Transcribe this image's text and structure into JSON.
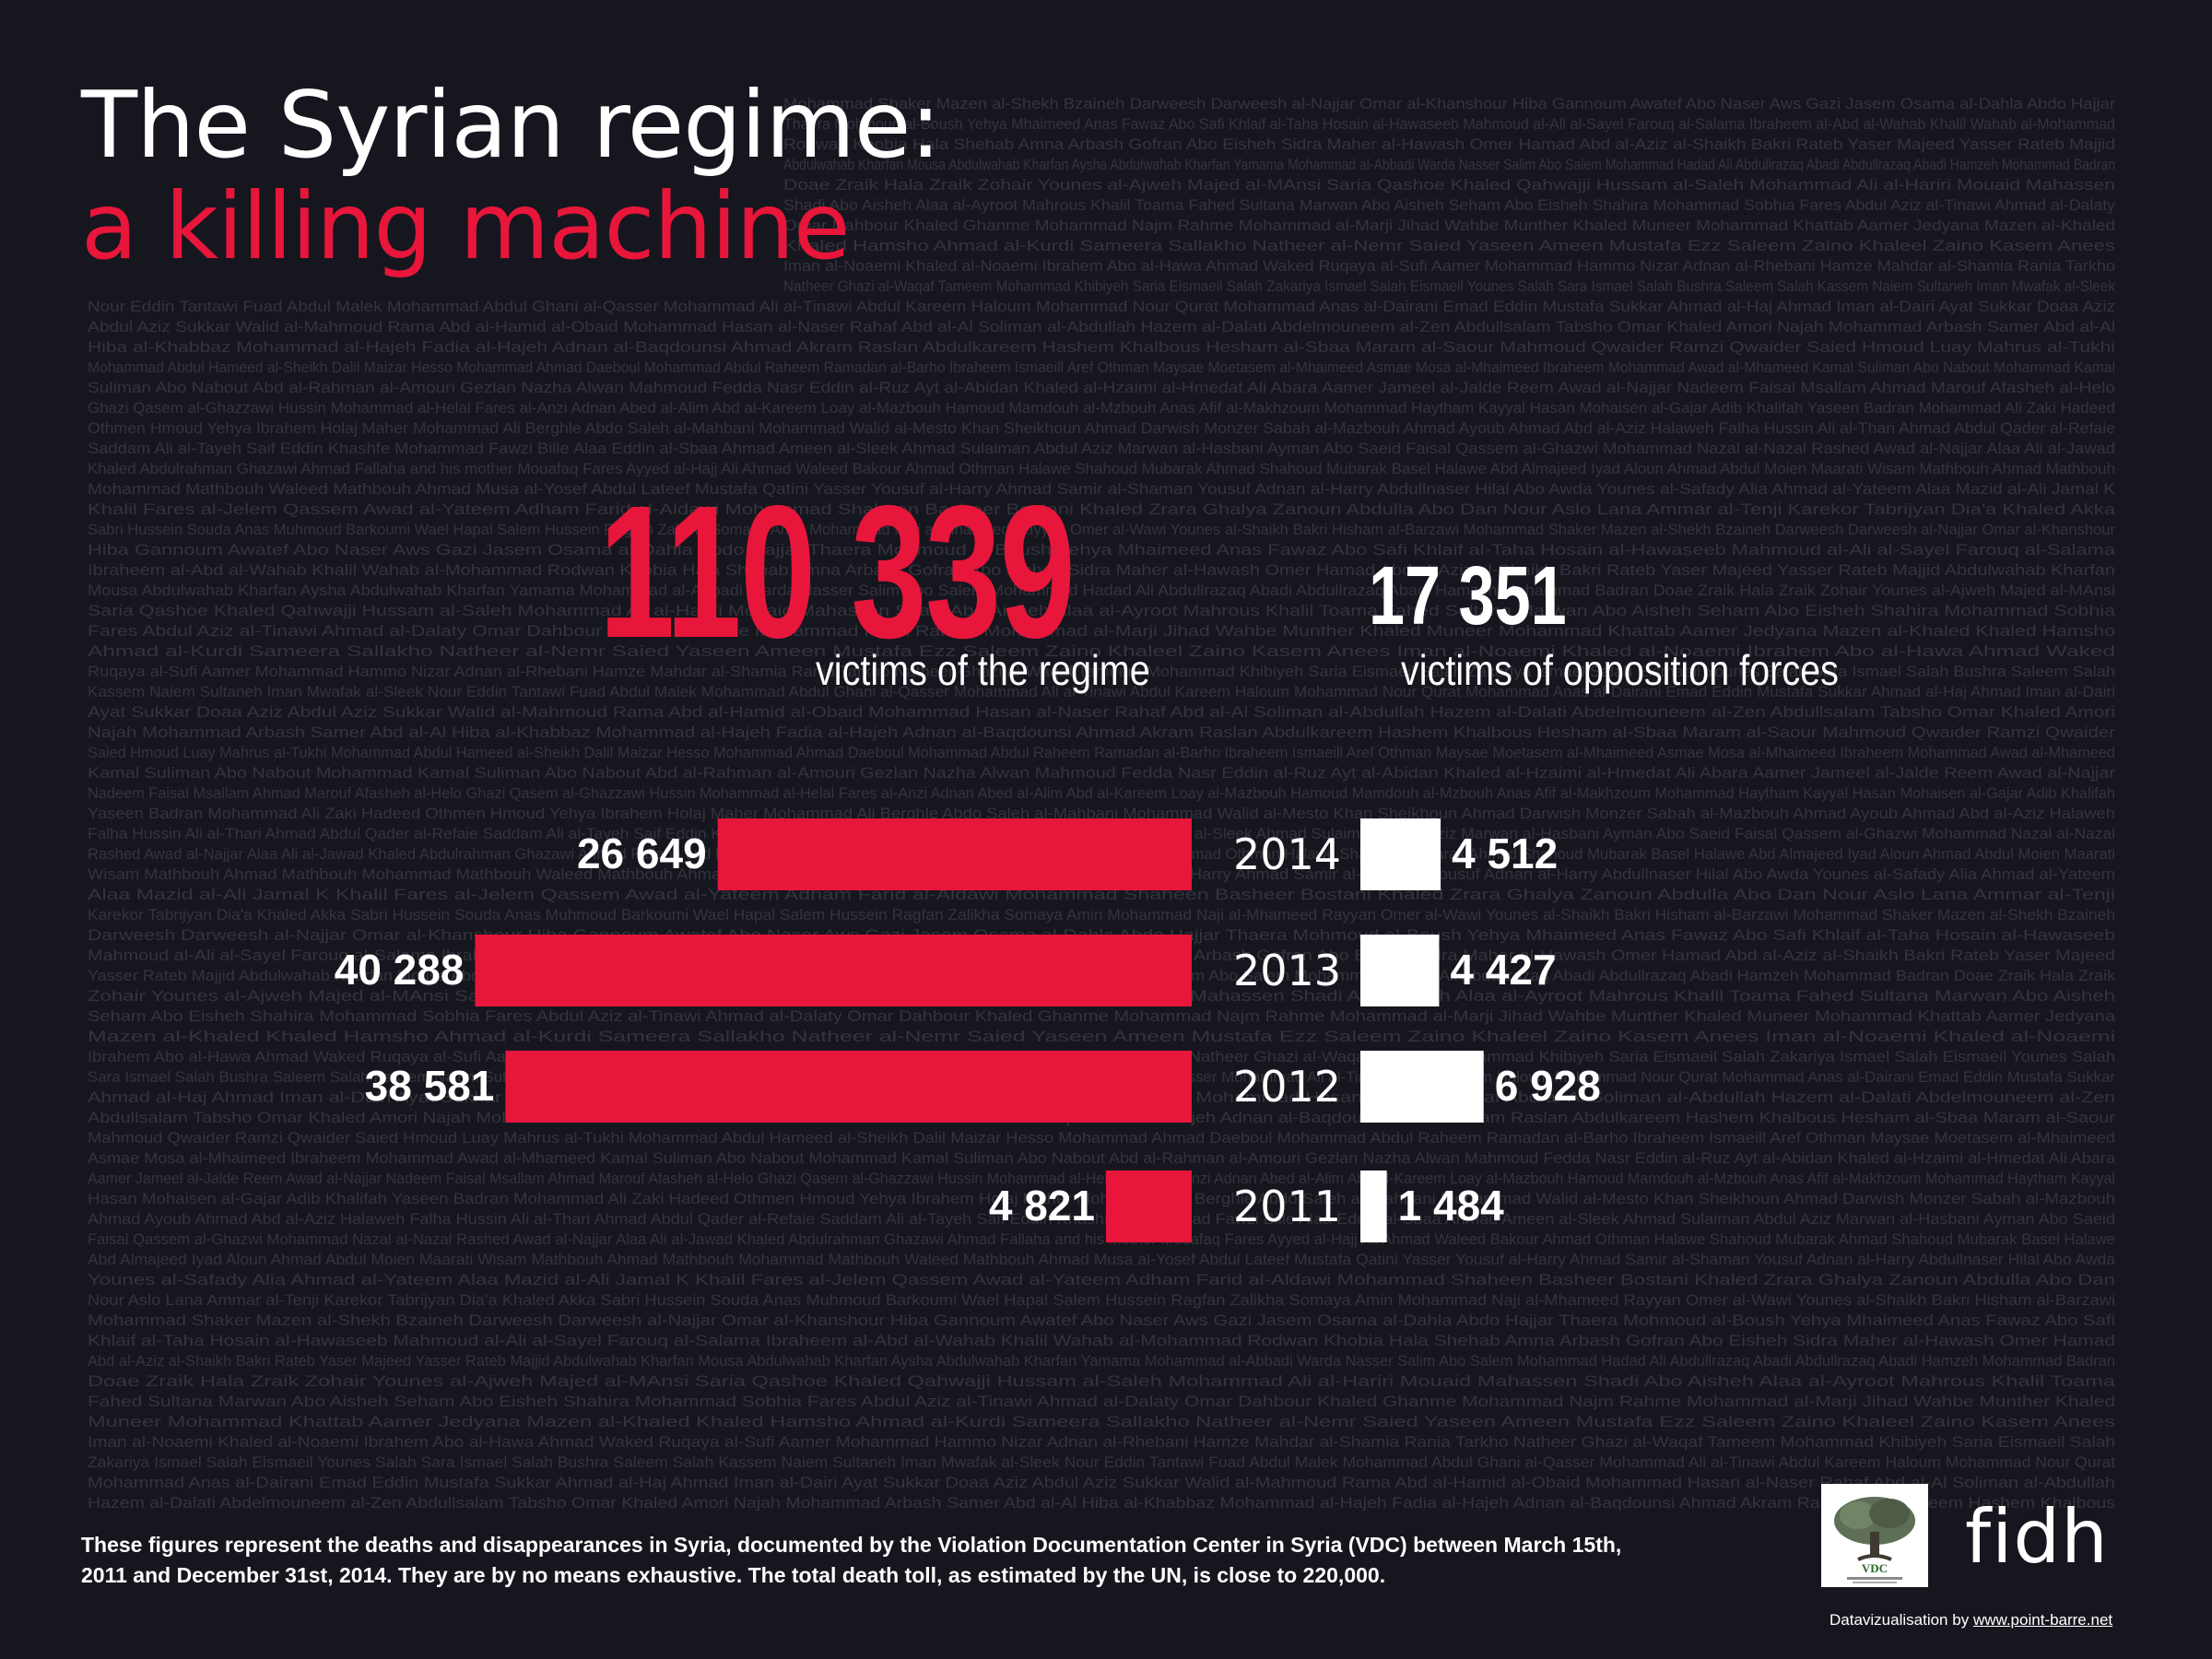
{
  "title_line1": "The Syrian regime:",
  "title_line2": "a killing machine",
  "regime_total": "110 339",
  "regime_label": "victims of the regime",
  "opposition_total": "17 351",
  "opposition_label": "victims of opposition forces",
  "footnote": "These figures represent the deaths and disappearances in Syria, documented by the Violation Documentation Center in Syria (VDC) between March 15th, 2011 and December 31st, 2014. They are by no means exhaustive. The total death toll, as estimated by the UN, is close to 220,000.",
  "credit_prefix": "Datavizualisation by",
  "credit_link": "www.point-barre.net",
  "fidh_logo": "fidh",
  "vdc_logo": "VDC",
  "colors": {
    "regime": "#e8163a",
    "opposition": "#ffffff",
    "background": "#16161f"
  },
  "chart_data": {
    "type": "bar",
    "categories": [
      "2014",
      "2013",
      "2012",
      "2011"
    ],
    "series": [
      {
        "name": "victims of the regime",
        "values": [
          26649,
          40288,
          38581,
          4821
        ],
        "labels": [
          "26 649",
          "40 288",
          "38 581",
          "4 821"
        ]
      },
      {
        "name": "victims of opposition forces",
        "values": [
          4512,
          4427,
          6928,
          1484
        ],
        "labels": [
          "4 512",
          "4 427",
          "6 928",
          "1 484"
        ]
      }
    ]
  },
  "background_names": [
    "Mohammad Shaker",
    "Mazen al-Shekh Bzaineh",
    "Darweesh Darweesh al-Najjar",
    "Omar al-Khanshour",
    "Hiba Gannoum",
    "Awatef Abo Naser",
    "Aws Gazi Jasem",
    "Osama al-Dahla",
    "Abdo Hajjar",
    "Thaera Mohmoud al-Boush",
    "Yehya Mhaimeed",
    "Anas Fawaz Abo Safi",
    "Khlaif al-Taha",
    "Hosain al-Hawaseeb",
    "Mahmoud al-Ali al-Sayel",
    "Farouq al-Salama",
    "Ibraheem al-Abd al-Wahab",
    "Khalil Wahab al-Mohammad",
    "Rodwan Khobia",
    "Hala Shehab",
    "Amna Arbash",
    "Gofran Abo Eisheh",
    "Sidra Maher al-Hawash",
    "Omer Hamad",
    "Abd al-Aziz al-Shaikh Bakri",
    "Rateb Yaser Majeed",
    "Yasser Rateb Majjid",
    "Abdulwahab Kharfan",
    "Mousa Abdulwahab Kharfan",
    "Aysha Abdulwahab Kharfan",
    "Yamama Mohammad al-Abbadi",
    "Warda Nasser Salim Abo Salem",
    "Mohammad Hadad",
    "Ali Abdullrazaq Abadi",
    "Abdullrazaq Abadi",
    "Hamzeh Mohammad Badran",
    "Doae Zraik",
    "Hala Zraik",
    "Zohair Younes al-Ajweh",
    "Majed al-MAnsi",
    "Saria Qashoe",
    "Khaled Qahwajji",
    "Hussam al-Saleh",
    "Mohammad Ali al-Hariri",
    "Mouaid Mahassen",
    "Shadi Abo Aisheh",
    "Alaa al-Ayroot",
    "Mahrous Khalil Toama",
    "Fahed Sultana",
    "Marwan Abo Aisheh",
    "Seham Abo Eisheh",
    "Shahira Mohammad Sobhia",
    "Fares Abdul Aziz al-Tinawi",
    "Ahmad al-Dalaty",
    "Omar Dahbour",
    "Khaled Ghanme",
    "Mohammad Najm Rahme",
    "Mohammad al-Marji",
    "Jihad Wahbe",
    "Munther Khaled",
    "Muneer Mohammad Khattab",
    "Aamer Jedyana",
    "Mazen al-Khaled",
    "Khaled Hamsho",
    "Ahmad al-Kurdi",
    "Sameera Sallakho",
    "Natheer al-Nemr",
    "Saied Yaseen",
    "Ameen Mustafa Ezz",
    "Saleem Zaino",
    "Khaleel Zaino",
    "Kasem Anees",
    "Iman al-Noaemi",
    "Khaled al-Noaemi",
    "Ibrahem Abo al-Hawa",
    "Ahmad Waked",
    "Ruqaya al-Sufi",
    "Aamer Mohammad Hammo",
    "Nizar Adnan al-Rhebani",
    "Hamze Mahdar al-Shamia",
    "Rania Tarkho",
    "Natheer Ghazi al-Waqaf",
    "Tameem Mohammad Khibiyeh",
    "Saria Eismaeil Salah",
    "Zakariya Ismael Salah",
    "Eismaeil Younes Salah",
    "Sara Ismael Salah",
    "Bushra Saleem Salah",
    "Kassem Naiem Sultaneh",
    "Iman Mwafak al-Sleek",
    "Nour Eddin Tantawi",
    "Fuad Abdul Malek",
    "Mohammad Abdul Ghani al-Qasser",
    "Mohammad Ali al-Tinawi",
    "Abdul Kareem Haloum",
    "Mohammad Nour Qurat",
    "Mohammad Anas al-Dairani",
    "Emad Eddin Mustafa Sukkar",
    "Ahmad al-Haj Ahmad",
    "Iman al-Dairi",
    "Ayat Sukkar",
    "Doaa Aziz",
    "Abdul Aziz Sukkar",
    "Walid al-Mahmoud",
    "Rama Abd al-Hamid al-Obaid",
    "Mohammad Hasan al-Naser",
    "Rahaf Abd al-Al",
    "Soliman al-Abdullah",
    "Hazem al-Dalati",
    "Abdelmouneem al-Zen",
    "Abdullsalam Tabsho",
    "Omar Khaled Amori",
    "Najah Mohammad Arbash",
    "Samer Abd al-Al",
    "Hiba al-Khabbaz",
    "Mohammad al-Hajeh",
    "Fadia al-Hajeh",
    "Adnan al-Baqdounsi",
    "Ahmad Akram Raslan",
    "Abdulkareem Hashem Khalbous",
    "Hesham al-Sbaa",
    "Maram al-Saour",
    "Mahmoud Qwaider",
    "Ramzi Qwaider",
    "Saied Hmoud",
    "Luay Mahrus al-Tukhi",
    "Mohammad Abdul Hameed al-Sheikh",
    "Dalil Maizar Hesso",
    "Mohammad Ahmad Daeboul",
    "Mohammad Abdul Raheem",
    "Ramadan al-Barho",
    "Ibraheem",
    "Ismaeill Aref Othman",
    "Maysae Moetasem al-Mhaimeed",
    "Asmae Mosa al-Mhaimeed",
    "Ibraheem Mohammad Awad al-Mhameed",
    "Kamal Suliman Abo Nabout",
    "Mohammad Kamal",
    "Suliman Abo Nabout",
    "Abd al-Rahman al-Amouri Gezlan",
    "Nazha Alwan",
    "Mahmoud Fedda",
    "Nasr Eddin al-Ruz",
    "Ayt al-Abidan",
    "Khaled al-Hzaimi al-Hmedat",
    "Ali Abara",
    "Aamer Jameel al-Jalde",
    "Reem Awad al-Najjar",
    "Nadeem Faisal Msallam",
    "Ahmad Marouf Afasheh al-Helo",
    "Ghazi Qasem al-Ghazzawi",
    "Hussin Mohammad al-Helal",
    "Fares al-Anzi",
    "Adnan Abed al-Alim",
    "Abd al-Kareem Loay al-Mazbouh",
    "Hamoud Mamdouh al-Mzbouh",
    "Anas Afif al-Makhzoum",
    "Mohammad Haytham Kayyal",
    "Hasan Mohaisen al-Gajar",
    "Adib Khalifah",
    "Yaseen Badran",
    "Mohammad Ali Zaki Hadeed",
    "Othmen Hmoud",
    "Yehya Ibrahem Holaj",
    "Maher Mohammad Ali Berghle",
    "Abdo Saleh al-Mahbani",
    "Mohammad Walid al-Mesto",
    "Khan Sheikhoun",
    "Ahmad Darwish",
    "Monzer Sabah al-Mazbouh",
    "Ahmad Ayoub",
    "Ahmad Abd al-Aziz Halaweh",
    "Falha Hussin Ali al-Thari",
    "Ahmad Abdul Qader al-Refaie",
    "Saddam Ali al-Tayeh",
    "Saif Eddin Khashfe",
    "Mohammad Fawzi Bille",
    "Alaa Eddin al-Sbaa",
    "Ahmad Ameen al-Sleek",
    "Ahmad Sulaiman Abdul Aziz",
    "Marwan al-Hasbani",
    "Ayman Abo Saeid",
    "Faisal Qassem al-Ghazwi",
    "Mohammad Nazal al-Nazal",
    "Rashed Awad al-Najjar",
    "Alaa Ali al-Jawad",
    "Khaled Abdulrahman Ghazawi",
    "Ahmad Fallaha and his mother",
    "Mouafaq Fares Ayyed al-Hajj Ali",
    "Ahmad Waleed Bakour",
    "Ahmad Othman Halawe",
    "Shahoud Mubarak",
    "Ahmad Shahoud Mubarak",
    "Basel Halawe",
    "Abd Almajeed Iyad Aloun",
    "Ahmad Abdul Moien Maarati",
    "Wisam Mathbouh",
    "Ahmad Mathbouh",
    "Mohammad Mathbouh",
    "Waleed Mathbouh",
    "Ahmad Musa al-Yosef",
    "Abdul Lateef Mustafa Qatini",
    "Yasser Yousuf al-Harry",
    "Ahmad Samir al-Shaman",
    "Yousuf Adnan al-Harry",
    "Abdullnaser Hilal Abo Awda",
    "Younes al-Safady",
    "Alia Ahmad al-Yateem",
    "Alaa Mazid al-Ali",
    "Jamal K",
    "Khalil Fares al-Jelem",
    "Qassem Awad al-Yateem",
    "Adham Farid al-Aldawi",
    "Mohammad Shaheen",
    "Basheer Bostani",
    "Khaled Zrara",
    "Ghalya Zanoun",
    "Abdulla Abo Dan",
    "Nour Aslo",
    "Lana Ammar al-Tenji",
    "Karekor Tabrijyan",
    "Dia'a Khaled Akka",
    "Sabri Hussein Souda",
    "Anas Muhmoud Barkoumi",
    "Wael Hapal",
    "Salem Hussein Ragfan Zalikha Somaya Amin",
    "Mohammad Naji al-Mhameed",
    "Rayyan Omer al-Wawi",
    "Younes al-Shaikh Bakri",
    "Hisham al-Barzawi"
  ]
}
